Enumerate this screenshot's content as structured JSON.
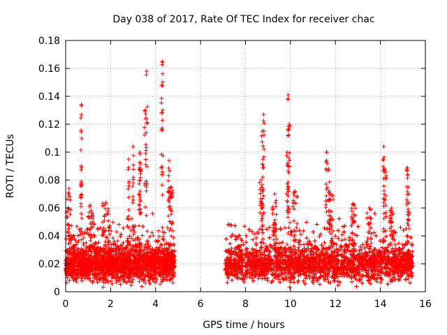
{
  "chart_data": {
    "type": "scatter",
    "title": "Day 038 of 2017, Rate Of TEC Index for receiver chac",
    "xlabel": "GPS time / hours",
    "ylabel": "ROTI / TECUs",
    "xlim": [
      0,
      16
    ],
    "ylim": [
      0,
      0.18
    ],
    "grid": true,
    "marker": "plus",
    "color": "#ff0000",
    "x_ticks": [
      0,
      2,
      4,
      6,
      8,
      10,
      12,
      14,
      16
    ],
    "x_tick_labels": [
      "0",
      "2",
      "4",
      "6",
      "8",
      "10",
      "12",
      "14",
      "16"
    ],
    "y_ticks": [
      0,
      0.02,
      0.04,
      0.06,
      0.08,
      0.1,
      0.12,
      0.14,
      0.16,
      0.18
    ],
    "y_tick_labels": [
      "0",
      "0.02",
      "0.04",
      "0.06",
      "0.08",
      "0.1",
      "0.12",
      "0.14",
      "0.16",
      "0.18"
    ],
    "segments": [
      {
        "x_start": 0.0,
        "x_end": 4.85,
        "baseline": 0.02,
        "spread": 0.012
      },
      {
        "x_start": 7.1,
        "x_end": 15.45,
        "baseline": 0.02,
        "spread": 0.012
      }
    ],
    "peaks": [
      {
        "x": 0.15,
        "y": 0.074,
        "width": 0.2
      },
      {
        "x": 0.7,
        "y": 0.134,
        "width": 0.05
      },
      {
        "x": 0.7,
        "y": 0.079,
        "width": 0.05
      },
      {
        "x": 1.1,
        "y": 0.062,
        "width": 0.25
      },
      {
        "x": 1.8,
        "y": 0.064,
        "width": 0.35
      },
      {
        "x": 2.8,
        "y": 0.095,
        "width": 0.05
      },
      {
        "x": 3.0,
        "y": 0.104,
        "width": 0.05
      },
      {
        "x": 3.3,
        "y": 0.1,
        "width": 0.08
      },
      {
        "x": 3.3,
        "y": 0.089,
        "width": 0.1
      },
      {
        "x": 3.6,
        "y": 0.158,
        "width": 0.07
      },
      {
        "x": 3.55,
        "y": 0.13,
        "width": 0.08
      },
      {
        "x": 4.3,
        "y": 0.165,
        "width": 0.04
      },
      {
        "x": 4.3,
        "y": 0.148,
        "width": 0.08
      },
      {
        "x": 4.6,
        "y": 0.094,
        "width": 0.12
      },
      {
        "x": 4.7,
        "y": 0.075,
        "width": 0.15
      },
      {
        "x": 8.7,
        "y": 0.08,
        "width": 0.15
      },
      {
        "x": 8.8,
        "y": 0.127,
        "width": 0.06
      },
      {
        "x": 8.75,
        "y": 0.115,
        "width": 0.08
      },
      {
        "x": 9.3,
        "y": 0.07,
        "width": 0.2
      },
      {
        "x": 9.9,
        "y": 0.141,
        "width": 0.05
      },
      {
        "x": 9.95,
        "y": 0.12,
        "width": 0.08
      },
      {
        "x": 9.85,
        "y": 0.1,
        "width": 0.1
      },
      {
        "x": 10.2,
        "y": 0.072,
        "width": 0.2
      },
      {
        "x": 11.6,
        "y": 0.1,
        "width": 0.06
      },
      {
        "x": 11.7,
        "y": 0.088,
        "width": 0.1
      },
      {
        "x": 11.8,
        "y": 0.07,
        "width": 0.2
      },
      {
        "x": 12.8,
        "y": 0.063,
        "width": 0.2
      },
      {
        "x": 13.5,
        "y": 0.06,
        "width": 0.2
      },
      {
        "x": 14.15,
        "y": 0.104,
        "width": 0.06
      },
      {
        "x": 14.2,
        "y": 0.088,
        "width": 0.12
      },
      {
        "x": 14.5,
        "y": 0.06,
        "width": 0.2
      },
      {
        "x": 15.2,
        "y": 0.089,
        "width": 0.06
      },
      {
        "x": 15.25,
        "y": 0.075,
        "width": 0.1
      }
    ]
  }
}
